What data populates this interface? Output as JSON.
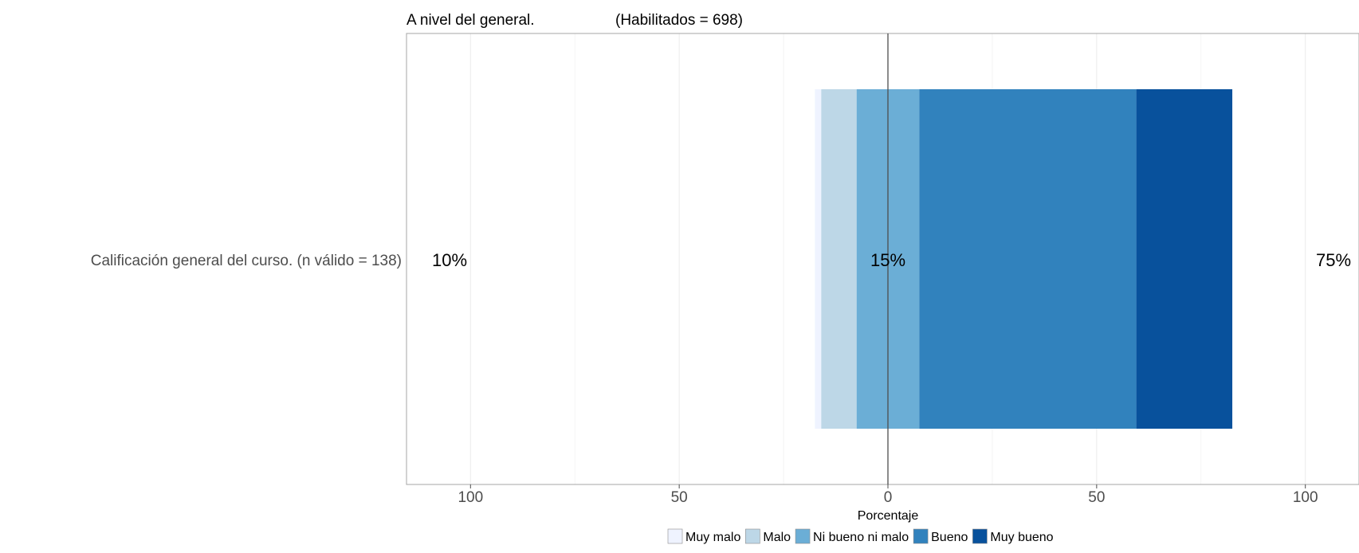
{
  "chart_data": {
    "type": "bar",
    "orientation": "horizontal",
    "layout": "diverging-stacked",
    "title": "A nivel del general.",
    "subtitle": "(Habilitados = 698)",
    "xlabel": "Porcentaje",
    "xlim": [
      -100,
      100
    ],
    "xticks": [
      -100,
      -50,
      0,
      50,
      100
    ],
    "xtick_labels": [
      "100",
      "50",
      "0",
      "50",
      "100"
    ],
    "category": "Calificación general del curso. (n válido = 138)",
    "series": [
      {
        "name": "Muy malo",
        "value": 1.5,
        "color": "#eff3ff"
      },
      {
        "name": "Malo",
        "value": 8.5,
        "color": "#bdd7e7"
      },
      {
        "name": "Ni bueno ni malo",
        "value": 15,
        "color": "#6baed6"
      },
      {
        "name": "Bueno",
        "value": 52,
        "color": "#3182bd"
      },
      {
        "name": "Muy bueno",
        "value": 23,
        "color": "#08519c"
      }
    ],
    "summary_labels": {
      "negative": "10%",
      "neutral": "15%",
      "positive": "75%"
    },
    "legend_position": "bottom",
    "grid": true
  }
}
